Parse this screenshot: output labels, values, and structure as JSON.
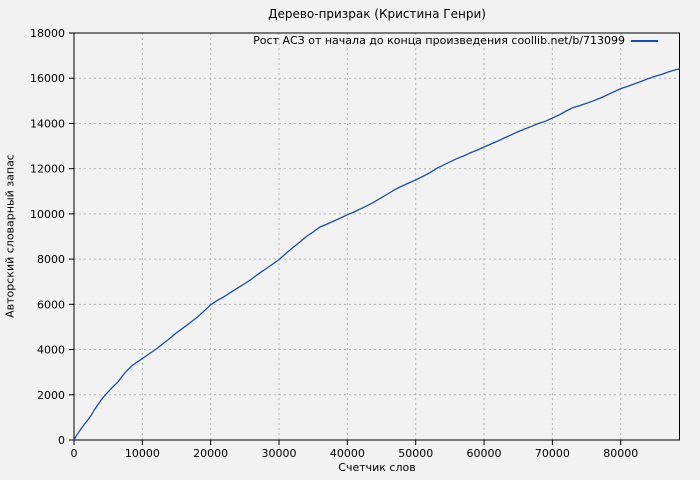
{
  "chart_data": {
    "type": "line",
    "title": "Дерево-призрак (Кристина Генри)",
    "xlabel": "Счетчик слов",
    "ylabel": "Авторский словарный запас",
    "legend": {
      "label": "Рост АСЗ от начала до конца произведения coollib.net/b/713099",
      "position": "top-right-inside"
    },
    "xlim": [
      0,
      88600
    ],
    "ylim": [
      0,
      18000
    ],
    "xticks": [
      0,
      10000,
      20000,
      30000,
      40000,
      50000,
      60000,
      70000,
      80000
    ],
    "yticks": [
      0,
      2000,
      4000,
      6000,
      8000,
      10000,
      12000,
      14000,
      16000,
      18000
    ],
    "grid": true,
    "grid_style": "dotted",
    "colors": {
      "line": "#1a4f9e",
      "grid": "#b4b4b4",
      "border": "#000000",
      "text": "#000000",
      "background": "#f2f2f2"
    },
    "series": [
      {
        "name": "Рост АСЗ от начала до конца произведения coollib.net/b/713099",
        "points": [
          [
            0,
            0
          ],
          [
            300,
            170
          ],
          [
            600,
            300
          ],
          [
            1000,
            480
          ],
          [
            1500,
            690
          ],
          [
            2000,
            880
          ],
          [
            2500,
            1090
          ],
          [
            3000,
            1340
          ],
          [
            3500,
            1560
          ],
          [
            4000,
            1780
          ],
          [
            4600,
            2000
          ],
          [
            5000,
            2130
          ],
          [
            5500,
            2290
          ],
          [
            6000,
            2440
          ],
          [
            6500,
            2590
          ],
          [
            7000,
            2790
          ],
          [
            7500,
            2990
          ],
          [
            8000,
            3150
          ],
          [
            8500,
            3280
          ],
          [
            9000,
            3400
          ],
          [
            9500,
            3500
          ],
          [
            10000,
            3600
          ],
          [
            11000,
            3810
          ],
          [
            12000,
            4020
          ],
          [
            13000,
            4250
          ],
          [
            14000,
            4490
          ],
          [
            15000,
            4740
          ],
          [
            16000,
            4960
          ],
          [
            17000,
            5190
          ],
          [
            18000,
            5420
          ],
          [
            19000,
            5690
          ],
          [
            20000,
            5980
          ],
          [
            21000,
            6180
          ],
          [
            22000,
            6340
          ],
          [
            23000,
            6540
          ],
          [
            24000,
            6730
          ],
          [
            25000,
            6920
          ],
          [
            26000,
            7120
          ],
          [
            27000,
            7350
          ],
          [
            28000,
            7560
          ],
          [
            29000,
            7760
          ],
          [
            30000,
            7980
          ],
          [
            31000,
            8250
          ],
          [
            32000,
            8500
          ],
          [
            33000,
            8740
          ],
          [
            34000,
            9000
          ],
          [
            35000,
            9200
          ],
          [
            36000,
            9420
          ],
          [
            37000,
            9550
          ],
          [
            38000,
            9680
          ],
          [
            39000,
            9820
          ],
          [
            40000,
            9960
          ],
          [
            41000,
            10090
          ],
          [
            42000,
            10230
          ],
          [
            43000,
            10380
          ],
          [
            44000,
            10540
          ],
          [
            45000,
            10720
          ],
          [
            46000,
            10900
          ],
          [
            47000,
            11080
          ],
          [
            48000,
            11230
          ],
          [
            49000,
            11370
          ],
          [
            50000,
            11500
          ],
          [
            51000,
            11650
          ],
          [
            52000,
            11810
          ],
          [
            53000,
            12000
          ],
          [
            54000,
            12150
          ],
          [
            55000,
            12300
          ],
          [
            56000,
            12440
          ],
          [
            57000,
            12560
          ],
          [
            58000,
            12700
          ],
          [
            59000,
            12820
          ],
          [
            60000,
            12960
          ],
          [
            61000,
            13090
          ],
          [
            62000,
            13220
          ],
          [
            63000,
            13360
          ],
          [
            64000,
            13500
          ],
          [
            65000,
            13640
          ],
          [
            66000,
            13760
          ],
          [
            67000,
            13880
          ],
          [
            68000,
            14000
          ],
          [
            69000,
            14100
          ],
          [
            70000,
            14240
          ],
          [
            71000,
            14380
          ],
          [
            72000,
            14550
          ],
          [
            73000,
            14700
          ],
          [
            74000,
            14790
          ],
          [
            75000,
            14890
          ],
          [
            76000,
            15000
          ],
          [
            77000,
            15120
          ],
          [
            78000,
            15260
          ],
          [
            79000,
            15400
          ],
          [
            80000,
            15540
          ],
          [
            81000,
            15640
          ],
          [
            82000,
            15750
          ],
          [
            83000,
            15860
          ],
          [
            84000,
            15980
          ],
          [
            85000,
            16080
          ],
          [
            86000,
            16170
          ],
          [
            87000,
            16280
          ],
          [
            88000,
            16370
          ],
          [
            88600,
            16420
          ]
        ]
      }
    ]
  }
}
